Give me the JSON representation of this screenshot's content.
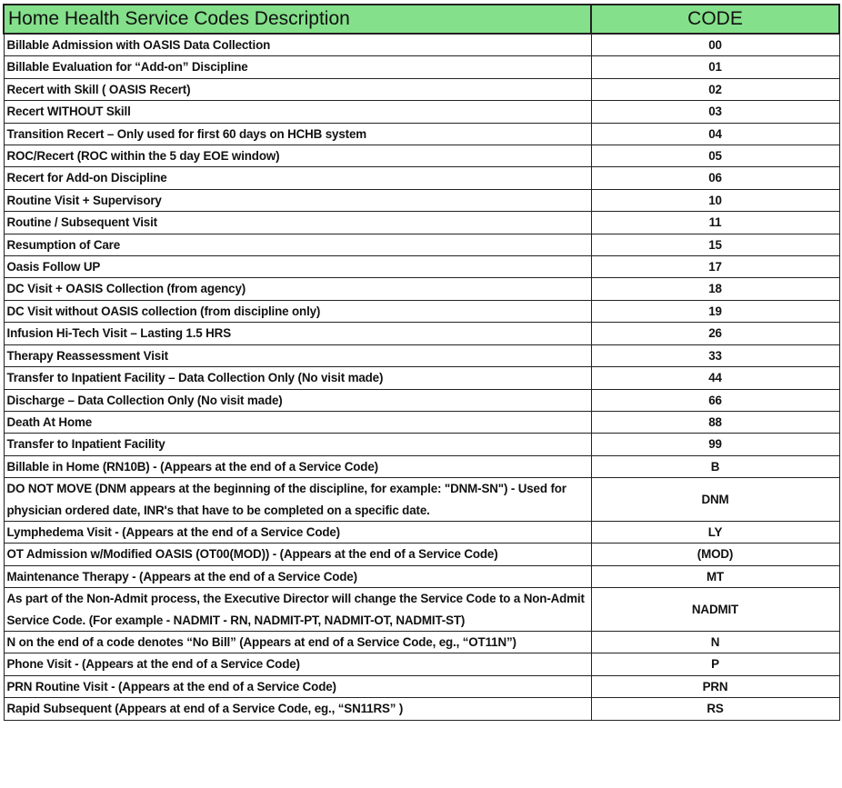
{
  "header": {
    "description": "Home Health Service Codes Description",
    "code": "CODE"
  },
  "colors": {
    "header_bg": "#84e08a"
  },
  "rows": [
    {
      "description": "Billable Admission with OASIS Data Collection",
      "code": "00"
    },
    {
      "description": "Billable Evaluation for “Add-on” Discipline",
      "code": "01"
    },
    {
      "description": "Recert with Skill ( OASIS Recert)",
      "code": "02"
    },
    {
      "description": "Recert WITHOUT Skill",
      "code": "03"
    },
    {
      "description": "Transition Recert – Only used for first 60 days on HCHB system",
      "code": "04"
    },
    {
      "description": "ROC/Recert (ROC within the 5 day EOE window)",
      "code": "05"
    },
    {
      "description": "Recert for Add-on Discipline",
      "code": "06"
    },
    {
      "description": "Routine Visit + Supervisory",
      "code": "10"
    },
    {
      "description": "Routine / Subsequent Visit",
      "code": "11"
    },
    {
      "description": "Resumption of Care",
      "code": "15"
    },
    {
      "description": "Oasis Follow UP",
      "code": "17"
    },
    {
      "description": "DC Visit + OASIS Collection (from agency)",
      "code": "18"
    },
    {
      "description": "DC Visit without OASIS collection (from discipline only)",
      "code": "19"
    },
    {
      "description": "Infusion Hi-Tech Visit – Lasting 1.5 HRS",
      "code": "26"
    },
    {
      "description": "Therapy Reassessment Visit",
      "code": "33"
    },
    {
      "description": "Transfer to Inpatient Facility – Data Collection Only (No visit made)",
      "code": "44"
    },
    {
      "description": "Discharge – Data Collection Only (No visit made)",
      "code": "66"
    },
    {
      "description": "Death At Home",
      "code": "88"
    },
    {
      "description": "Transfer to Inpatient Facility",
      "code": "99"
    },
    {
      "description": "Billable in Home (RN10B) - (Appears at the end of a Service Code)",
      "code": "B"
    },
    {
      "description": "DO NOT MOVE (DNM appears at the beginning of the discipline, for example: \"DNM-SN\") - Used for physician ordered date, INR's that have to be completed on a specific date.",
      "code": "DNM"
    },
    {
      "description": "Lymphedema Visit - (Appears at the end of a Service Code)",
      "code": "LY"
    },
    {
      "description": "OT Admission w/Modified OASIS (OT00(MOD)) - (Appears at the end of a Service Code)",
      "code": "(MOD)"
    },
    {
      "description": "Maintenance Therapy - (Appears at the end of a Service Code)",
      "code": "MT"
    },
    {
      "description": "As part of the Non-Admit process, the Executive Director will change the Service Code to a Non-Admit Service Code.  (For example - NADMIT - RN, NADMIT-PT, NADMIT-OT, NADMIT-ST)",
      "code": "NADMIT"
    },
    {
      "description": "N  on the end of a code denotes “No Bill” (Appears at end of a Service Code, eg., “OT11N”)",
      "code": "N"
    },
    {
      "description": "Phone Visit - (Appears at the end of a Service Code)",
      "code": "P"
    },
    {
      "description": "PRN Routine Visit - (Appears at the end of a Service Code)",
      "code": "PRN"
    },
    {
      "description": "Rapid Subsequent (Appears at end of a Service Code, eg., “SN11RS” )",
      "code": "RS"
    }
  ]
}
